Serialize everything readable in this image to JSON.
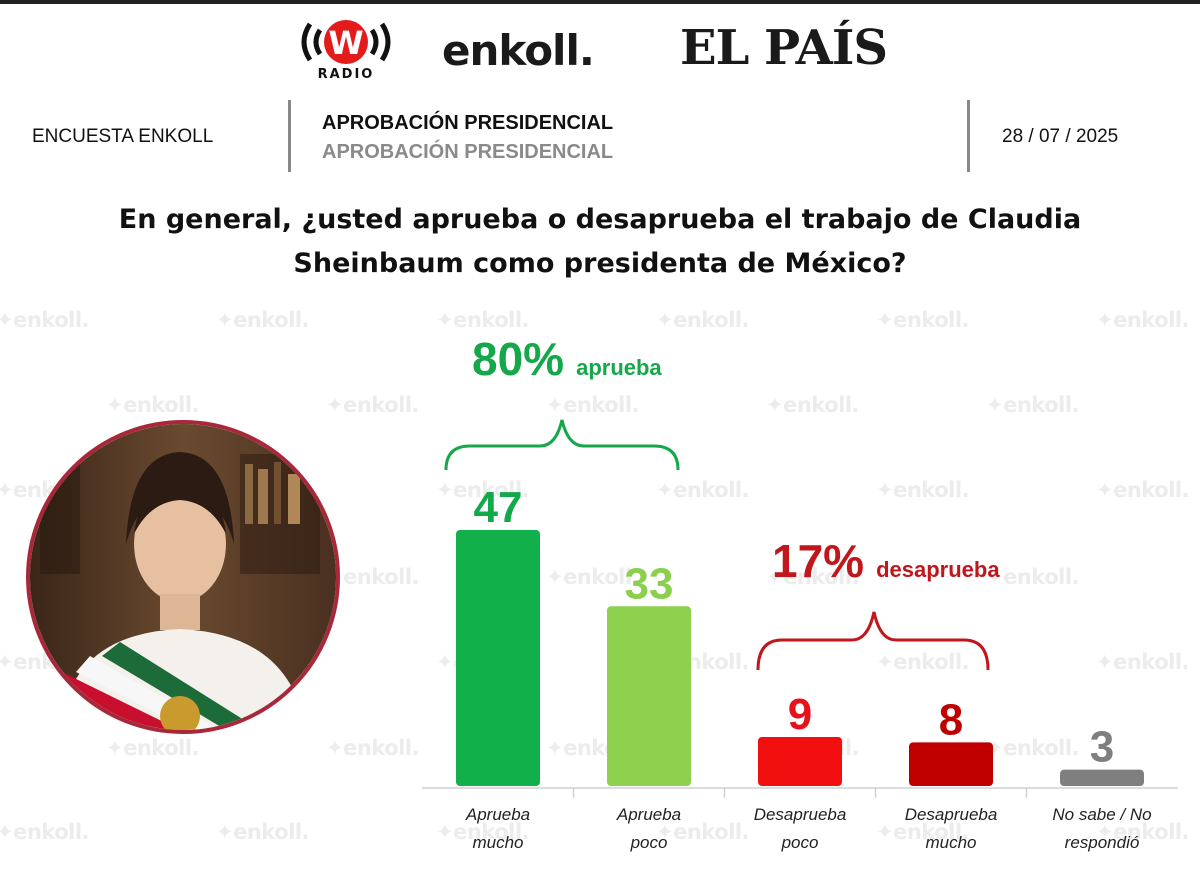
{
  "header": {
    "logos": {
      "wradio_mark": "W",
      "wradio_sub": "RADIO",
      "enkoll": "enkoll.",
      "elpais": "EL PAÍS"
    },
    "survey_label": "ENCUESTA ENKOLL",
    "title_primary": "APROBACIÓN PRESIDENCIAL",
    "title_secondary": "APROBACIÓN PRESIDENCIAL",
    "date": "28 / 07 / 2025"
  },
  "question_line1": "En general, ¿usted aprueba o desaprueba el trabajo de Claudia",
  "question_line2": "Sheinbaum como presidenta de México?",
  "watermark_text": "enkoll.",
  "photo_icon": "portrait-photo",
  "groups": {
    "approve": {
      "percent": "80%",
      "label": "aprueba",
      "color": "#15a84a"
    },
    "disapprove": {
      "percent": "17%",
      "label": "desaprueba",
      "color": "#c0161c"
    }
  },
  "chart_data": {
    "type": "bar",
    "categories": [
      "Aprueba mucho",
      "Aprueba poco",
      "Desaprueba poco",
      "Desaprueba mucho",
      "No sabe / No respondió"
    ],
    "category_lines": [
      [
        "Aprueba",
        "mucho"
      ],
      [
        "Aprueba",
        "poco"
      ],
      [
        "Desaprueba",
        "poco"
      ],
      [
        "Desaprueba",
        "mucho"
      ],
      [
        "No sabe / No",
        "respondió"
      ]
    ],
    "values": [
      47,
      33,
      9,
      8,
      3
    ],
    "colors": [
      "#12b04a",
      "#8ed14f",
      "#f20f0f",
      "#c00000",
      "#7f7f7f"
    ],
    "value_label_colors": [
      "#12a94a",
      "#8ccf4d",
      "#e8101a",
      "#c00000",
      "#7f7f7f"
    ],
    "ylim": [
      0,
      47
    ],
    "grid": false,
    "legend": "none"
  }
}
